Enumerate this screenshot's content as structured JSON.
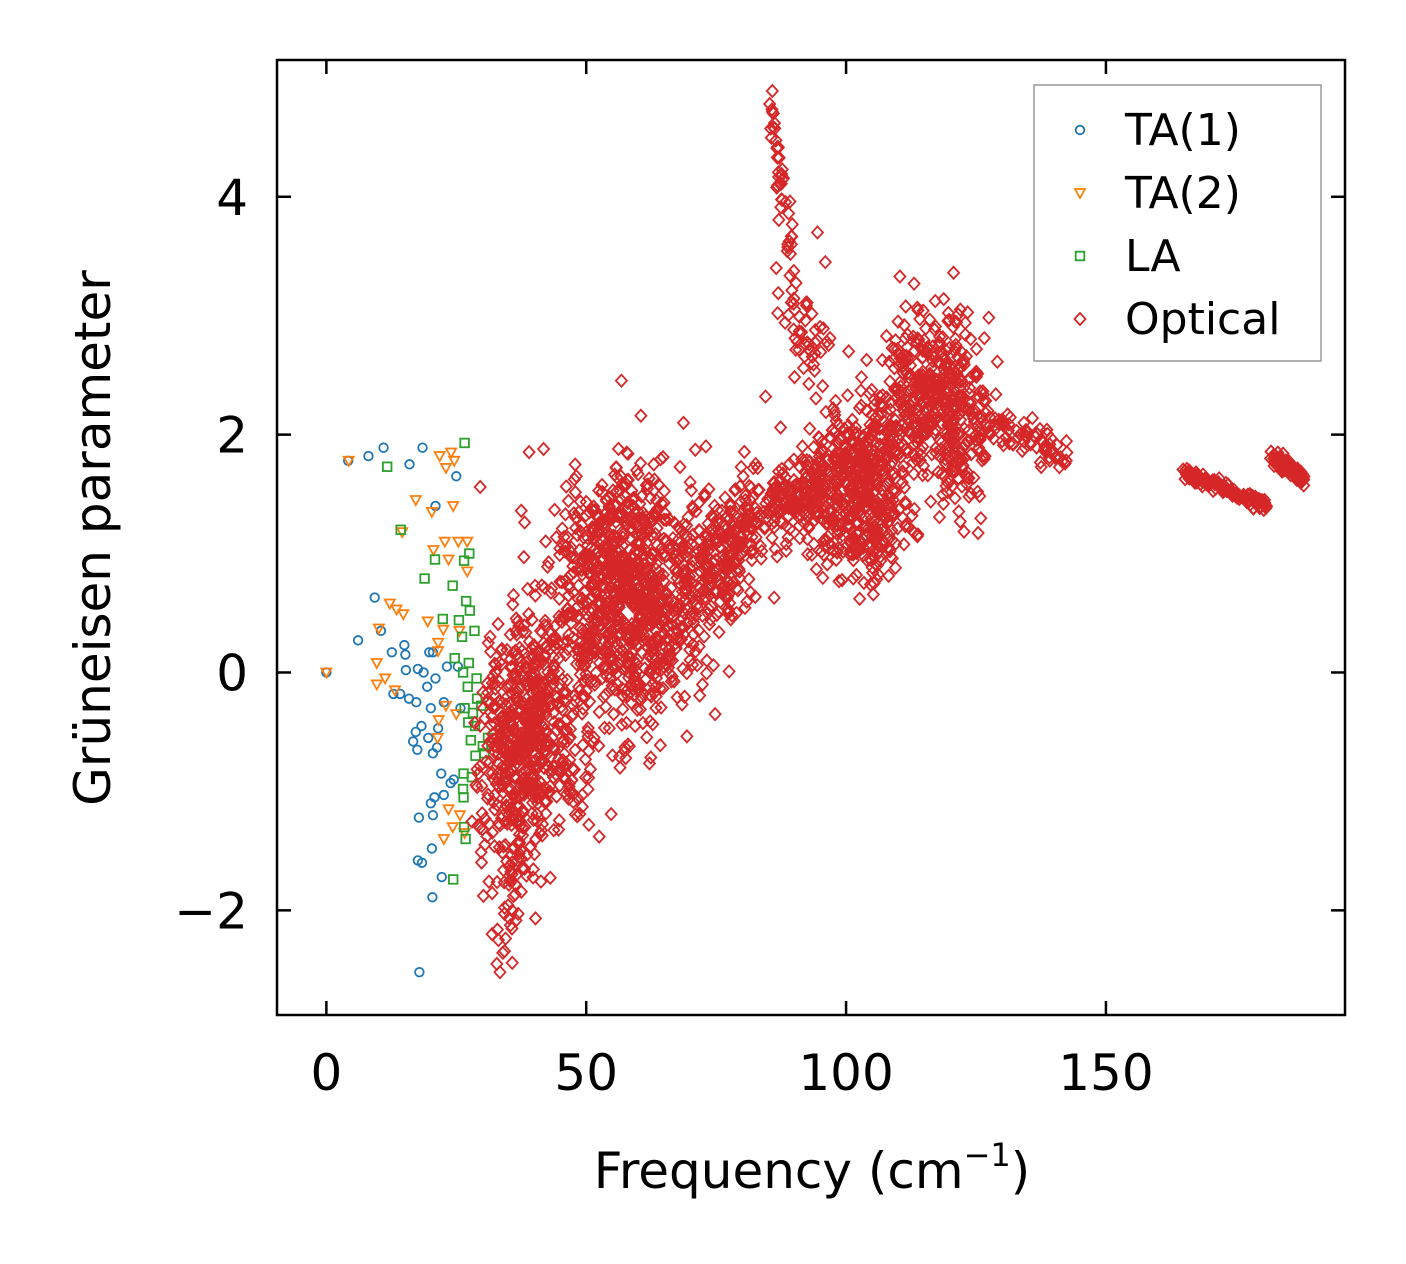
{
  "chart_data": {
    "type": "scatter",
    "title": "",
    "xlabel": "Frequency (cm",
    "xlabel_sup": "−1",
    "xlabel_tail": ")",
    "ylabel": "Grüneisen parameter",
    "xlim": [
      -9.5,
      196
    ],
    "ylim": [
      -2.88,
      5.15
    ],
    "xticks": [
      0,
      50,
      100,
      150
    ],
    "xtick_labels": [
      "0",
      "50",
      "100",
      "150"
    ],
    "yticks": [
      -2,
      0,
      2,
      4
    ],
    "ytick_labels": [
      "−2",
      "0",
      "2",
      "4"
    ],
    "legend_position": "top-right",
    "grid": false,
    "series": [
      {
        "name": "TA(1)",
        "marker": "circle",
        "color": "#1f77b4",
        "points": [
          [
            0,
            0
          ],
          [
            4.2,
            1.78
          ],
          [
            8.1,
            1.82
          ],
          [
            11,
            1.89
          ],
          [
            18.5,
            1.89
          ],
          [
            16,
            1.75
          ],
          [
            25,
            1.65
          ],
          [
            21,
            1.4
          ],
          [
            9.3,
            0.63
          ],
          [
            6.1,
            0.27
          ],
          [
            10.5,
            0.35
          ],
          [
            12.6,
            0.17
          ],
          [
            15,
            0.23
          ],
          [
            15.2,
            0.15
          ],
          [
            19.8,
            0.17
          ],
          [
            20.5,
            0.17
          ],
          [
            15.3,
            0.02
          ],
          [
            17.6,
            0.03
          ],
          [
            18.7,
            0
          ],
          [
            23.2,
            0.05
          ],
          [
            25.3,
            0.05
          ],
          [
            14.2,
            -0.18
          ],
          [
            12.9,
            -0.18
          ],
          [
            15.9,
            -0.22
          ],
          [
            17.3,
            -0.25
          ],
          [
            20.1,
            -0.3
          ],
          [
            22.6,
            -0.25
          ],
          [
            25.8,
            -0.3
          ],
          [
            17.2,
            -0.5
          ],
          [
            19.6,
            -0.55
          ],
          [
            21.5,
            -0.47
          ],
          [
            16.7,
            -0.58
          ],
          [
            17.5,
            -0.65
          ],
          [
            20.5,
            -0.68
          ],
          [
            21.3,
            -0.63
          ],
          [
            18.3,
            -0.45
          ],
          [
            22.1,
            -0.85
          ],
          [
            24.5,
            -0.9
          ],
          [
            22.6,
            -1.03
          ],
          [
            20.1,
            -1.1
          ],
          [
            20.8,
            -1.05
          ],
          [
            17.8,
            -1.22
          ],
          [
            20.5,
            -1.2
          ],
          [
            17.6,
            -1.58
          ],
          [
            18.4,
            -1.6
          ],
          [
            20.3,
            -1.48
          ],
          [
            22.2,
            -1.72
          ],
          [
            20.4,
            -1.89
          ],
          [
            17.9,
            -2.52
          ],
          [
            23.9,
            -0.93
          ],
          [
            21,
            -0.05
          ],
          [
            19.4,
            -0.12
          ]
        ]
      },
      {
        "name": "TA(2)",
        "marker": "triangle-down",
        "color": "#ff7f0e",
        "points": [
          [
            0,
            0
          ],
          [
            4.3,
            1.78
          ],
          [
            21.8,
            1.82
          ],
          [
            23,
            1.72
          ],
          [
            24.6,
            1.78
          ],
          [
            24,
            1.85
          ],
          [
            17.2,
            1.45
          ],
          [
            24.4,
            1.4
          ],
          [
            20.3,
            1.35
          ],
          [
            14.6,
            1.18
          ],
          [
            22.8,
            1.1
          ],
          [
            25.4,
            1.1
          ],
          [
            27.1,
            1.1
          ],
          [
            20.6,
            1.03
          ],
          [
            23.5,
            0.95
          ],
          [
            27.1,
            0.85
          ],
          [
            12.2,
            0.58
          ],
          [
            13.5,
            0.53
          ],
          [
            14.8,
            0.49
          ],
          [
            19.5,
            0.43
          ],
          [
            22.5,
            0.36
          ],
          [
            25.6,
            0.35
          ],
          [
            21.5,
            0.25
          ],
          [
            10.1,
            0.37
          ],
          [
            9.7,
            0.08
          ],
          [
            11.3,
            -0.05
          ],
          [
            9.7,
            -0.1
          ],
          [
            13.2,
            -0.15
          ],
          [
            21.6,
            -0.4
          ],
          [
            23,
            -0.28
          ],
          [
            21.4,
            -0.55
          ],
          [
            25,
            -0.35
          ],
          [
            24.3,
            -1.3
          ],
          [
            25.7,
            -1.2
          ],
          [
            26.6,
            -1.35
          ],
          [
            22.6,
            -1.4
          ],
          [
            23.5,
            -1.15
          ],
          [
            21.5,
            0.18
          ]
        ]
      },
      {
        "name": "LA",
        "marker": "square",
        "color": "#2ca02c",
        "points": [
          [
            11.7,
            1.73
          ],
          [
            26.6,
            1.93
          ],
          [
            14.3,
            1.2
          ],
          [
            26.5,
            0.94
          ],
          [
            20.9,
            0.95
          ],
          [
            27.5,
            1.0
          ],
          [
            18.9,
            0.79
          ],
          [
            24.3,
            0.73
          ],
          [
            26.9,
            0.6
          ],
          [
            22.4,
            0.45
          ],
          [
            25.5,
            0.44
          ],
          [
            27.6,
            0.52
          ],
          [
            26.1,
            0.3
          ],
          [
            28.5,
            0.35
          ],
          [
            24.7,
            0.12
          ],
          [
            27.4,
            0.08
          ],
          [
            26.3,
            0.0
          ],
          [
            28.9,
            -0.05
          ],
          [
            27.2,
            -0.12
          ],
          [
            29,
            -0.22
          ],
          [
            26.6,
            -0.3
          ],
          [
            28.2,
            -0.34
          ],
          [
            29.8,
            -0.28
          ],
          [
            27.3,
            -0.42
          ],
          [
            28.6,
            -0.45
          ],
          [
            27.8,
            -0.57
          ],
          [
            30.4,
            -0.68
          ],
          [
            28.7,
            -0.7
          ],
          [
            26.4,
            -0.85
          ],
          [
            28,
            -0.88
          ],
          [
            26.3,
            -0.98
          ],
          [
            26.4,
            -1.05
          ],
          [
            26.5,
            -1.3
          ],
          [
            26.8,
            -1.4
          ],
          [
            24.4,
            -1.74
          ],
          [
            31.1,
            -0.55
          ],
          [
            30.1,
            -0.62
          ]
        ]
      },
      {
        "name": "Optical",
        "marker": "diamond",
        "color": "#d62728",
        "seed": 7,
        "clusters": [
          {
            "cx": 38,
            "cy": -0.45,
            "sx": 4.0,
            "sy": 0.45,
            "n": 520
          },
          {
            "cx": 36,
            "cy": -1.5,
            "sx": 2.2,
            "sy": 0.42,
            "n": 90
          },
          {
            "cx": 55,
            "cy": 0.75,
            "sx": 6.0,
            "sy": 0.5,
            "n": 700
          },
          {
            "cx": 65,
            "cy": 0.45,
            "sx": 5.0,
            "sy": 0.5,
            "n": 300
          },
          {
            "cx": 76,
            "cy": 0.95,
            "sx": 4.0,
            "sy": 0.28,
            "n": 230
          },
          {
            "cx": 89,
            "cy": 1.45,
            "sx": 4.5,
            "sy": 0.15,
            "n": 160
          },
          {
            "cx": 100,
            "cy": 1.6,
            "sx": 4.5,
            "sy": 0.3,
            "n": 350
          },
          {
            "cx": 106,
            "cy": 1.4,
            "sx": 3.2,
            "sy": 0.3,
            "n": 180
          },
          {
            "cx": 115,
            "cy": 2.35,
            "sx": 5.0,
            "sy": 0.35,
            "n": 380
          },
          {
            "cx": 122,
            "cy": 1.9,
            "sx": 2.5,
            "sy": 0.3,
            "n": 120
          },
          {
            "cx": 46,
            "cy": -0.9,
            "sx": 3.0,
            "sy": 0.3,
            "n": 60
          }
        ],
        "lines": [
          {
            "x0": 85.5,
            "y0": 4.78,
            "x1": 89.5,
            "y1": 3.5,
            "jx": 0.35,
            "jy": 0.1,
            "n": 40
          },
          {
            "x0": 88,
            "y0": 3.2,
            "x1": 96,
            "y1": 2.4,
            "jx": 0.8,
            "jy": 0.2,
            "n": 50
          },
          {
            "x0": 125,
            "y0": 2.15,
            "x1": 142,
            "y1": 1.85,
            "jx": 1.0,
            "jy": 0.08,
            "n": 90
          },
          {
            "x0": 165,
            "y0": 1.68,
            "x1": 181,
            "y1": 1.4,
            "jx": 0.25,
            "jy": 0.025,
            "n": 140
          },
          {
            "x0": 182,
            "y0": 1.82,
            "x1": 188,
            "y1": 1.63,
            "jx": 0.25,
            "jy": 0.03,
            "n": 90
          }
        ],
        "points": [
          [
            29.6,
            1.56
          ],
          [
            37.5,
            1.36
          ],
          [
            86,
            4.7
          ],
          [
            85.3,
            4.78
          ],
          [
            89.2,
            3.96
          ],
          [
            94.5,
            3.7
          ],
          [
            96,
            3.45
          ],
          [
            89.3,
            3.52
          ],
          [
            84.5,
            2.32
          ],
          [
            87.4,
            2.06
          ],
          [
            96.3,
            2.78
          ],
          [
            100.5,
            2.7
          ],
          [
            110,
            2.95
          ],
          [
            111.2,
            2.92
          ],
          [
            114,
            2.8
          ],
          [
            142.5,
            1.85
          ],
          [
            74.8,
            -0.35
          ],
          [
            58.3,
            -0.62
          ],
          [
            57.6,
            -0.72
          ],
          [
            56.5,
            -0.8
          ],
          [
            52.5,
            -1.38
          ],
          [
            50.5,
            -1.28
          ],
          [
            32.8,
            -2.45
          ],
          [
            33.4,
            -2.52
          ],
          [
            31.9,
            -2.2
          ],
          [
            33.1,
            -2.25
          ],
          [
            36.9,
            -2.03
          ],
          [
            40.3,
            -1.4
          ],
          [
            30.2,
            -0.3
          ],
          [
            31.5,
            0.3
          ],
          [
            36,
            0.65
          ],
          [
            38,
            0.97
          ],
          [
            46,
            1.33
          ],
          [
            48,
            1.3
          ],
          [
            106,
            0.9
          ],
          [
            104.6,
            0.95
          ],
          [
            109.5,
            0.88
          ],
          [
            113,
            1.18
          ],
          [
            104.7,
            0.74
          ],
          [
            108.9,
            0.96
          ],
          [
            78,
            0.48
          ],
          [
            59.7,
            1.7
          ],
          [
            63,
            1.75
          ],
          [
            70,
            1.6
          ],
          [
            72.8,
            1.5
          ],
          [
            80.2,
            1.65
          ],
          [
            83,
            1.72
          ],
          [
            91.6,
            1.9
          ],
          [
            93,
            2.05
          ]
        ]
      }
    ]
  }
}
